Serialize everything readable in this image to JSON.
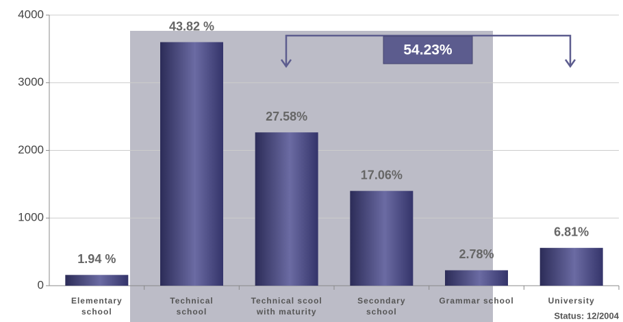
{
  "chart_data": {
    "type": "bar",
    "categories": [
      "Elementary\nschool",
      "Technical\nschool",
      "Technical scool\nwith maturity",
      "Secondary\nschool",
      "Grammar school",
      "University"
    ],
    "values": [
      159,
      3600,
      2266,
      1401,
      228,
      559
    ],
    "share_labels": [
      "1.94 %",
      "43.82 %",
      "27.58%",
      "17.06%",
      "2.78%",
      "6.81%"
    ],
    "color": "#4a4a80",
    "ylim": [
      0,
      4000
    ],
    "yticks": [
      0,
      1000,
      2000,
      3000,
      4000
    ],
    "grid": true,
    "bracket_label": "54.23%",
    "status": "Status:  12/2004"
  }
}
